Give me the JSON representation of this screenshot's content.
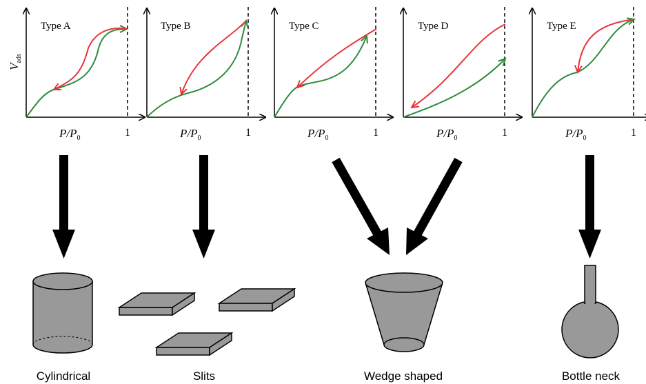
{
  "panels": [
    {
      "title": "Type A"
    },
    {
      "title": "Type B"
    },
    {
      "title": "Type C"
    },
    {
      "title": "Type D"
    },
    {
      "title": "Type E"
    }
  ],
  "axes": {
    "y_label": "V",
    "y_label_sub": "ads",
    "x_label": "P/P",
    "x_label_sub": "0",
    "x_end": "1"
  },
  "shapes": [
    {
      "label": "Cylindrical"
    },
    {
      "label": "Slits"
    },
    {
      "label": "Wedge shaped"
    },
    {
      "label": "Bottle neck"
    }
  ]
}
